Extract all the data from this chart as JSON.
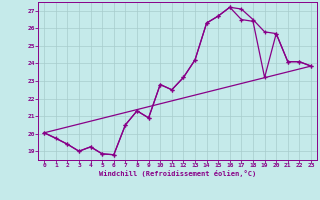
{
  "xlabel": "Windchill (Refroidissement éolien,°C)",
  "bg_color": "#c5eaea",
  "grid_color": "#a8cccc",
  "line_color": "#880088",
  "axis_label_color": "#880088",
  "tick_color": "#880088",
  "xlim": [
    -0.5,
    23.5
  ],
  "ylim": [
    18.5,
    27.5
  ],
  "xticks": [
    0,
    1,
    2,
    3,
    4,
    5,
    6,
    7,
    8,
    9,
    10,
    11,
    12,
    13,
    14,
    15,
    16,
    17,
    18,
    19,
    20,
    21,
    22,
    23
  ],
  "yticks": [
    19,
    20,
    21,
    22,
    23,
    24,
    25,
    26,
    27
  ],
  "line1_x": [
    0,
    1,
    2,
    3,
    4,
    5,
    6,
    7,
    8,
    9,
    10,
    11,
    12,
    13,
    14,
    15,
    16,
    17,
    18,
    19,
    20,
    21,
    22,
    23
  ],
  "line1_y": [
    20.05,
    19.75,
    19.4,
    19.0,
    19.25,
    18.85,
    18.8,
    20.5,
    21.3,
    20.9,
    22.8,
    22.5,
    23.2,
    24.2,
    26.3,
    26.7,
    27.2,
    27.1,
    26.5,
    25.8,
    25.7,
    24.1,
    24.1,
    23.85
  ],
  "line2_x": [
    0,
    2,
    3,
    4,
    5,
    6,
    7,
    8,
    9,
    10,
    11,
    12,
    13,
    14,
    15,
    16,
    17,
    18,
    19,
    20,
    21,
    22,
    23
  ],
  "line2_y": [
    20.05,
    19.4,
    19.0,
    19.25,
    18.85,
    18.8,
    20.5,
    21.3,
    20.9,
    22.8,
    22.5,
    23.2,
    24.2,
    26.3,
    26.7,
    27.2,
    26.5,
    26.4,
    23.2,
    25.7,
    24.1,
    24.1,
    23.85
  ],
  "line3_x": [
    0,
    23
  ],
  "line3_y": [
    20.05,
    23.85
  ]
}
